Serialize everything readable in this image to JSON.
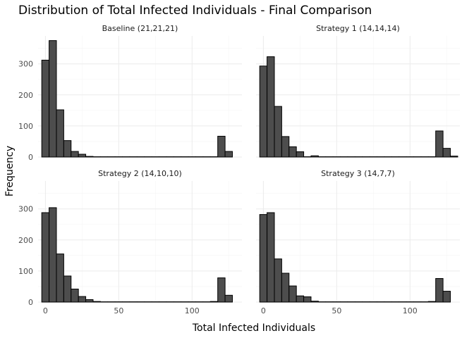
{
  "chart_data": {
    "type": "bar",
    "title": "Distribution of Total Infected Individuals - Final Comparison",
    "xlabel": "Total Infected Individuals",
    "ylabel": "Frequency",
    "xlim": [
      -5,
      134
    ],
    "ylim": [
      0,
      390
    ],
    "x_ticks": [
      0,
      50,
      100
    ],
    "y_ticks": [
      0,
      100,
      200,
      300
    ],
    "bin_width": 5,
    "bin_starts": [
      -2.5,
      2.5,
      7.5,
      12.5,
      17.5,
      22.5,
      27.5,
      32.5,
      37.5,
      42.5,
      47.5,
      52.5,
      57.5,
      62.5,
      67.5,
      72.5,
      77.5,
      82.5,
      87.5,
      92.5,
      97.5,
      102.5,
      107.5,
      112.5,
      117.5,
      122.5,
      127.5
    ],
    "grid": true,
    "legend": "none",
    "panels": [
      {
        "title": "Baseline (21,21,21)",
        "values": [
          312,
          375,
          152,
          53,
          18,
          9,
          2,
          1,
          1,
          1,
          1,
          1,
          1,
          1,
          1,
          1,
          1,
          1,
          1,
          1,
          1,
          1,
          1,
          1,
          67,
          18,
          0
        ]
      },
      {
        "title": "Strategy 1 (14,14,14)",
        "values": [
          293,
          323,
          163,
          66,
          33,
          17,
          1,
          4,
          1,
          1,
          1,
          1,
          1,
          1,
          1,
          1,
          1,
          1,
          1,
          1,
          1,
          1,
          1,
          1,
          84,
          28,
          3
        ]
      },
      {
        "title": "Strategy 2 (14,10,10)",
        "values": [
          288,
          304,
          155,
          84,
          42,
          18,
          8,
          2,
          1,
          1,
          1,
          1,
          1,
          1,
          1,
          1,
          1,
          1,
          1,
          1,
          1,
          1,
          1,
          2,
          78,
          22,
          0
        ]
      },
      {
        "title": "Strategy 3 (14,7,7)",
        "values": [
          282,
          288,
          139,
          93,
          52,
          20,
          17,
          3,
          1,
          1,
          1,
          1,
          1,
          1,
          1,
          1,
          1,
          1,
          1,
          1,
          1,
          1,
          1,
          2,
          76,
          35,
          0
        ]
      }
    ]
  }
}
